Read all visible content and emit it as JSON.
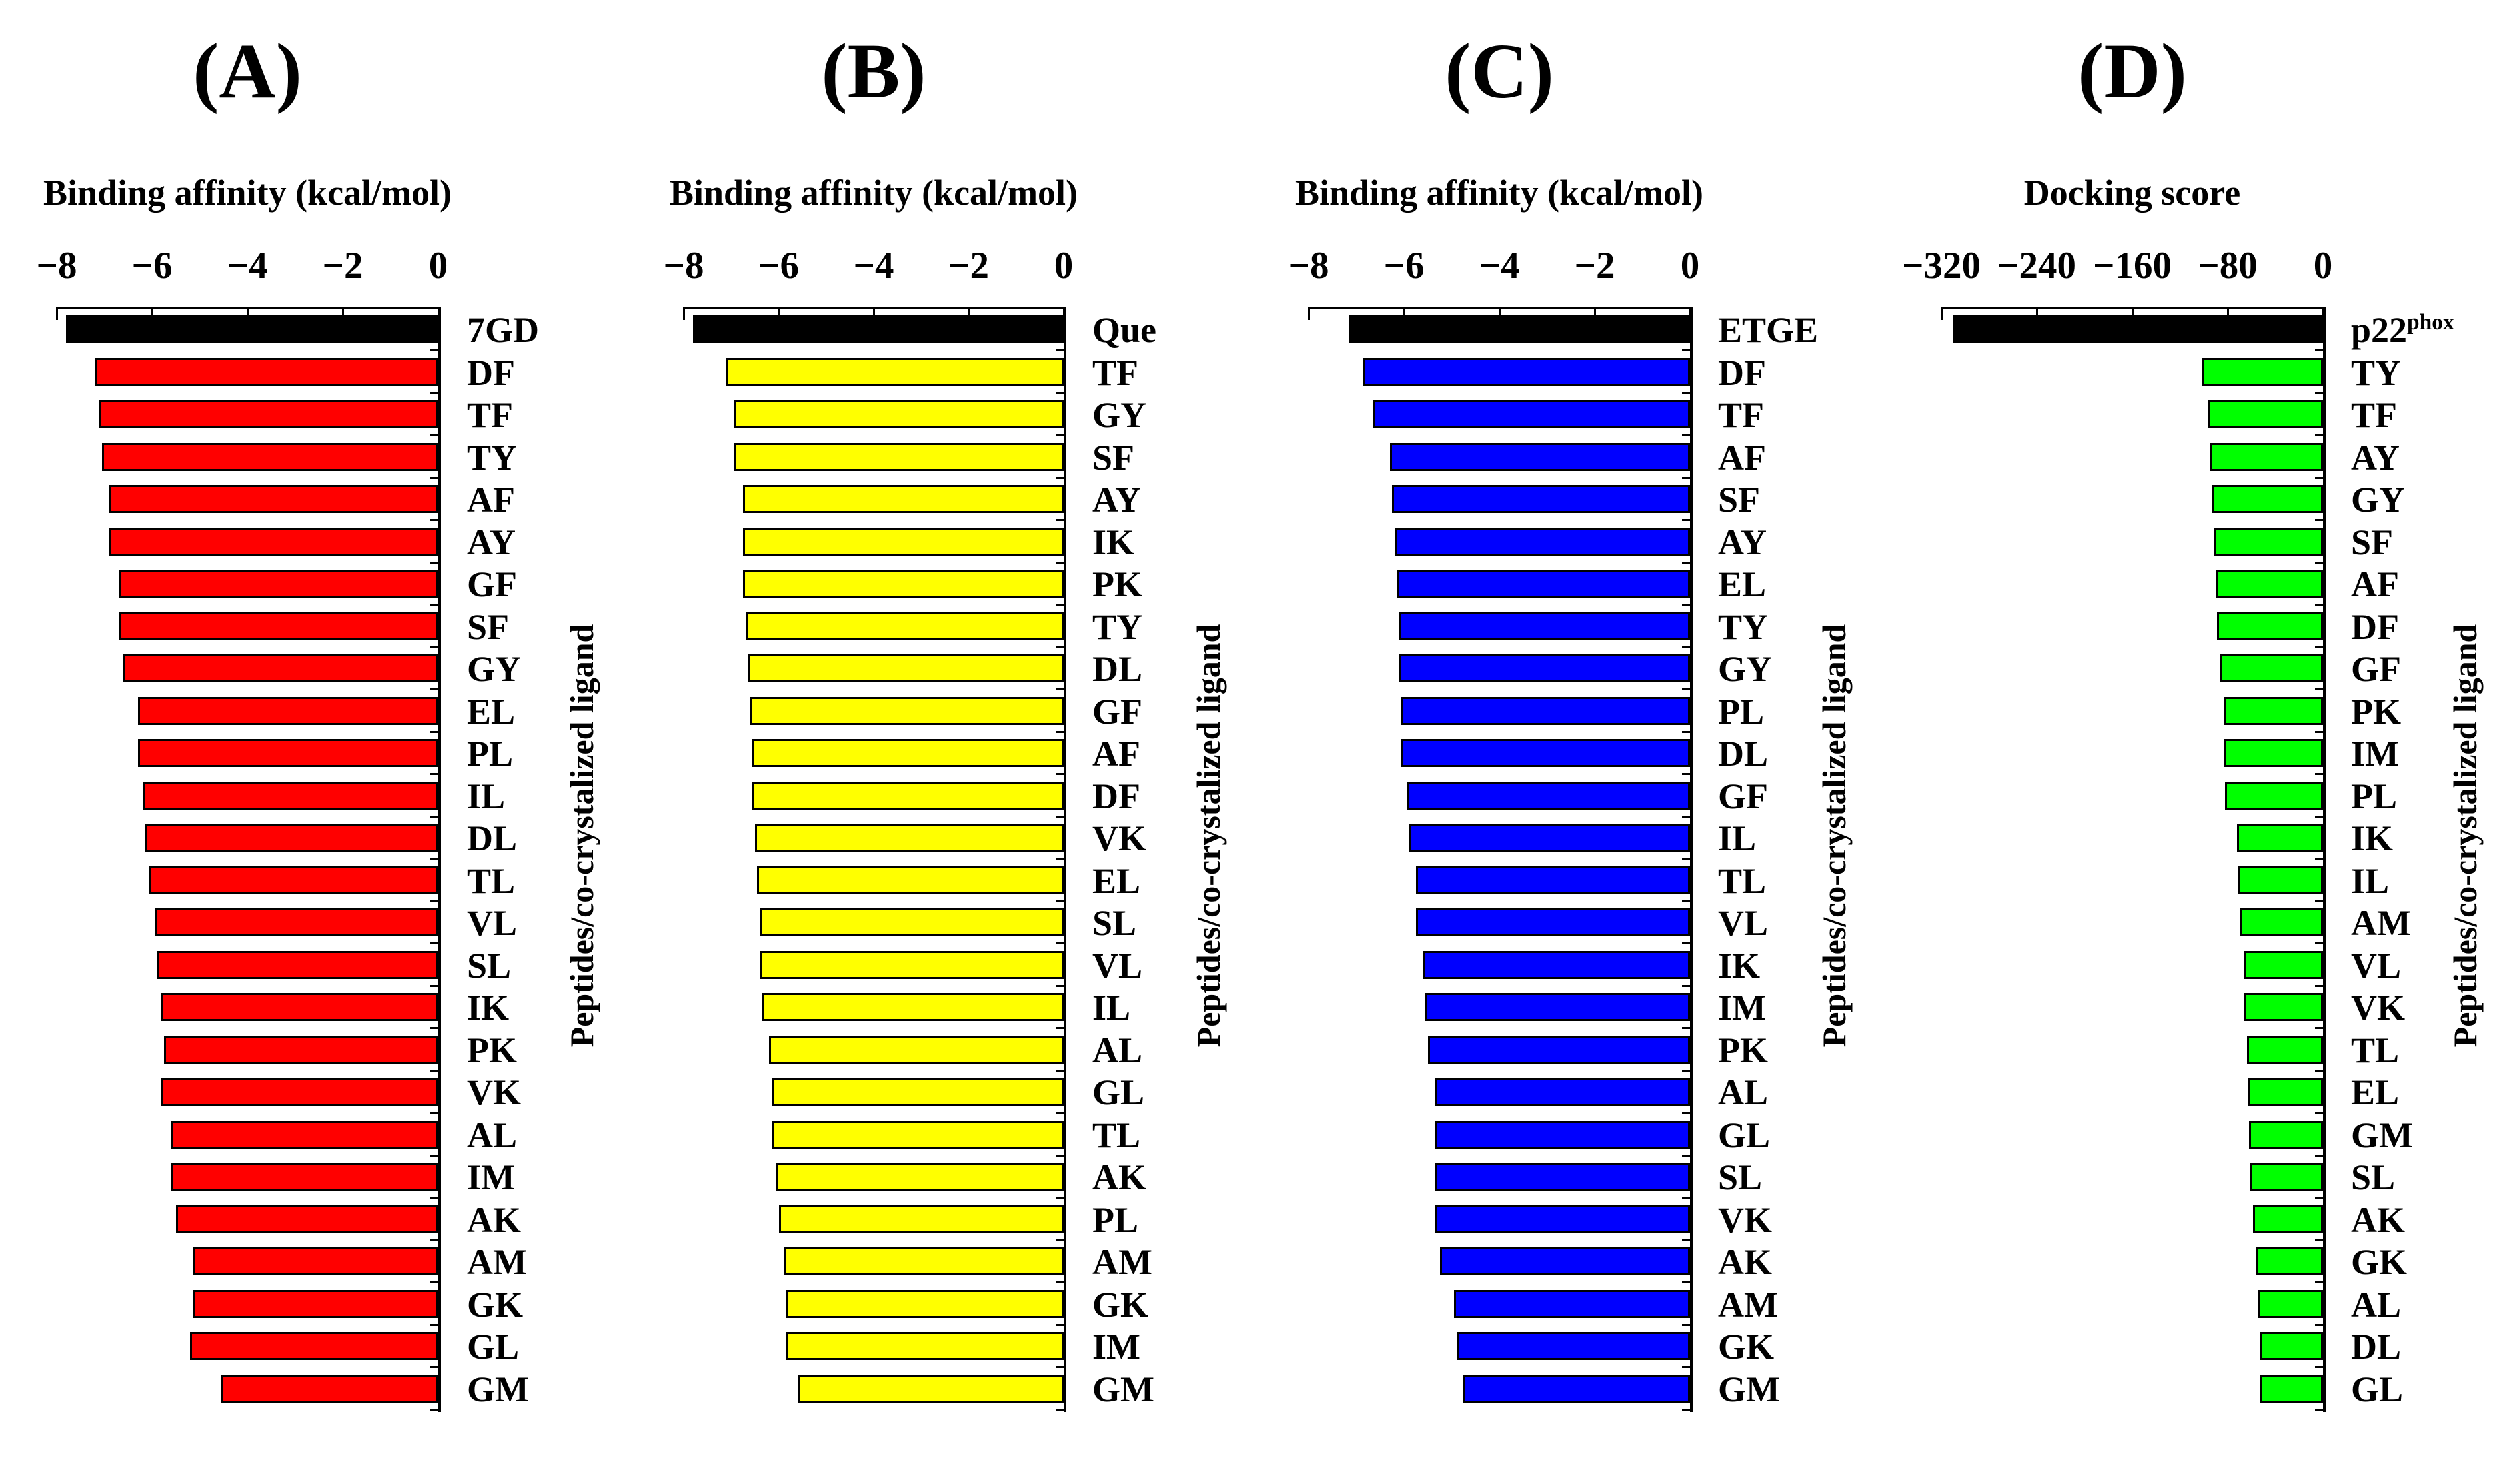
{
  "figure": {
    "side_label": "Peptides/co-crystalized ligand",
    "superscript_labels": {
      "p22phox": {
        "base": "p22",
        "sup": "phox"
      }
    }
  },
  "chart_data": [
    {
      "type": "bar",
      "orientation": "horizontal",
      "panel": "(A)",
      "xlabel": "Binding affinity (kcal/mol)",
      "ylabel_right": "Peptides/co-crystalized ligand",
      "xlim": [
        -8,
        0
      ],
      "xticks": [
        -8,
        -6,
        -4,
        -2,
        0
      ],
      "xtick_labels": [
        "−8",
        "−6",
        "−4",
        "−2",
        "0"
      ],
      "bar_color": "#ff0000",
      "reference_bar_color": "#000000",
      "reference_category": "7GD",
      "grid": false,
      "categories": [
        "7GD",
        "DF",
        "TF",
        "TY",
        "AF",
        "AY",
        "GF",
        "SF",
        "GY",
        "EL",
        "PL",
        "IL",
        "DL",
        "TL",
        "VL",
        "SL",
        "IK",
        "PK",
        "VK",
        "AL",
        "IM",
        "AK",
        "AM",
        "GK",
        "GL",
        "GM"
      ],
      "values": [
        -7.8,
        -7.2,
        -7.1,
        -7.05,
        -6.9,
        -6.9,
        -6.7,
        -6.7,
        -6.6,
        -6.3,
        -6.3,
        -6.2,
        -6.15,
        -6.05,
        -5.95,
        -5.9,
        -5.8,
        -5.75,
        -5.8,
        -5.6,
        -5.6,
        -5.5,
        -5.15,
        -5.15,
        -5.2,
        -4.55
      ]
    },
    {
      "type": "bar",
      "orientation": "horizontal",
      "panel": "(B)",
      "xlabel": "Binding affinity (kcal/mol)",
      "ylabel_right": "Peptides/co-crystalized ligand",
      "xlim": [
        -8,
        0
      ],
      "xticks": [
        -8,
        -6,
        -4,
        -2,
        0
      ],
      "xtick_labels": [
        "−8",
        "−6",
        "−4",
        "−2",
        "0"
      ],
      "bar_color": "#ffff00",
      "reference_bar_color": "#000000",
      "reference_category": "Que",
      "grid": false,
      "categories": [
        "Que",
        "TF",
        "GY",
        "SF",
        "AY",
        "IK",
        "PK",
        "TY",
        "DL",
        "GF",
        "AF",
        "DF",
        "VK",
        "EL",
        "SL",
        "VL",
        "IL",
        "AL",
        "GL",
        "TL",
        "AK",
        "PL",
        "AM",
        "GK",
        "IM",
        "GM"
      ],
      "values": [
        -7.8,
        -7.1,
        -6.95,
        -6.95,
        -6.75,
        -6.75,
        -6.75,
        -6.7,
        -6.65,
        -6.6,
        -6.55,
        -6.55,
        -6.5,
        -6.45,
        -6.4,
        -6.4,
        -6.35,
        -6.2,
        -6.15,
        -6.15,
        -6.05,
        -6.0,
        -5.9,
        -5.85,
        -5.85,
        -5.6
      ]
    },
    {
      "type": "bar",
      "orientation": "horizontal",
      "panel": "(C)",
      "xlabel": "Binding affinity (kcal/mol)",
      "ylabel_right": "Peptides/co-crystalized ligand",
      "xlim": [
        -8,
        0
      ],
      "xticks": [
        -8,
        -6,
        -4,
        -2,
        0
      ],
      "xtick_labels": [
        "−8",
        "−6",
        "−4",
        "−2",
        "0"
      ],
      "bar_color": "#0000ff",
      "reference_bar_color": "#000000",
      "reference_category": "ETGE",
      "grid": false,
      "categories": [
        "ETGE",
        "DF",
        "TF",
        "AF",
        "SF",
        "AY",
        "EL",
        "TY",
        "GY",
        "PL",
        "DL",
        "GF",
        "IL",
        "TL",
        "VL",
        "IK",
        "IM",
        "PK",
        "AL",
        "GL",
        "SL",
        "VK",
        "AK",
        "AM",
        "GK",
        "GM"
      ],
      "values": [
        -7.15,
        -6.85,
        -6.65,
        -6.3,
        -6.25,
        -6.2,
        -6.15,
        -6.1,
        -6.1,
        -6.05,
        -6.05,
        -5.95,
        -5.9,
        -5.75,
        -5.75,
        -5.6,
        -5.55,
        -5.5,
        -5.35,
        -5.35,
        -5.35,
        -5.35,
        -5.25,
        -4.95,
        -4.9,
        -4.75
      ]
    },
    {
      "type": "bar",
      "orientation": "horizontal",
      "panel": "(D)",
      "xlabel": "Docking score",
      "ylabel_right": "Peptides/co-crystalized ligand",
      "xlim": [
        -320,
        0
      ],
      "xticks": [
        -320,
        -240,
        -160,
        -80,
        0
      ],
      "xtick_labels": [
        "−320",
        "−240",
        "−160",
        "−80",
        "0"
      ],
      "bar_color": "#00ff00",
      "reference_bar_color": "#000000",
      "reference_category": "p22phox",
      "grid": false,
      "categories": [
        "p22phox",
        "TY",
        "TF",
        "AY",
        "GY",
        "SF",
        "AF",
        "DF",
        "GF",
        "PK",
        "IM",
        "PL",
        "IK",
        "IL",
        "AM",
        "VL",
        "VK",
        "TL",
        "EL",
        "GM",
        "SL",
        "AK",
        "GK",
        "AL",
        "DL",
        "GL"
      ],
      "values": [
        -310,
        -102,
        -97,
        -95,
        -93,
        -92,
        -90,
        -89,
        -86,
        -83,
        -83,
        -82,
        -72,
        -71,
        -70,
        -66,
        -66,
        -64,
        -63,
        -62,
        -61,
        -59,
        -56,
        -55,
        -53,
        -53
      ]
    }
  ]
}
